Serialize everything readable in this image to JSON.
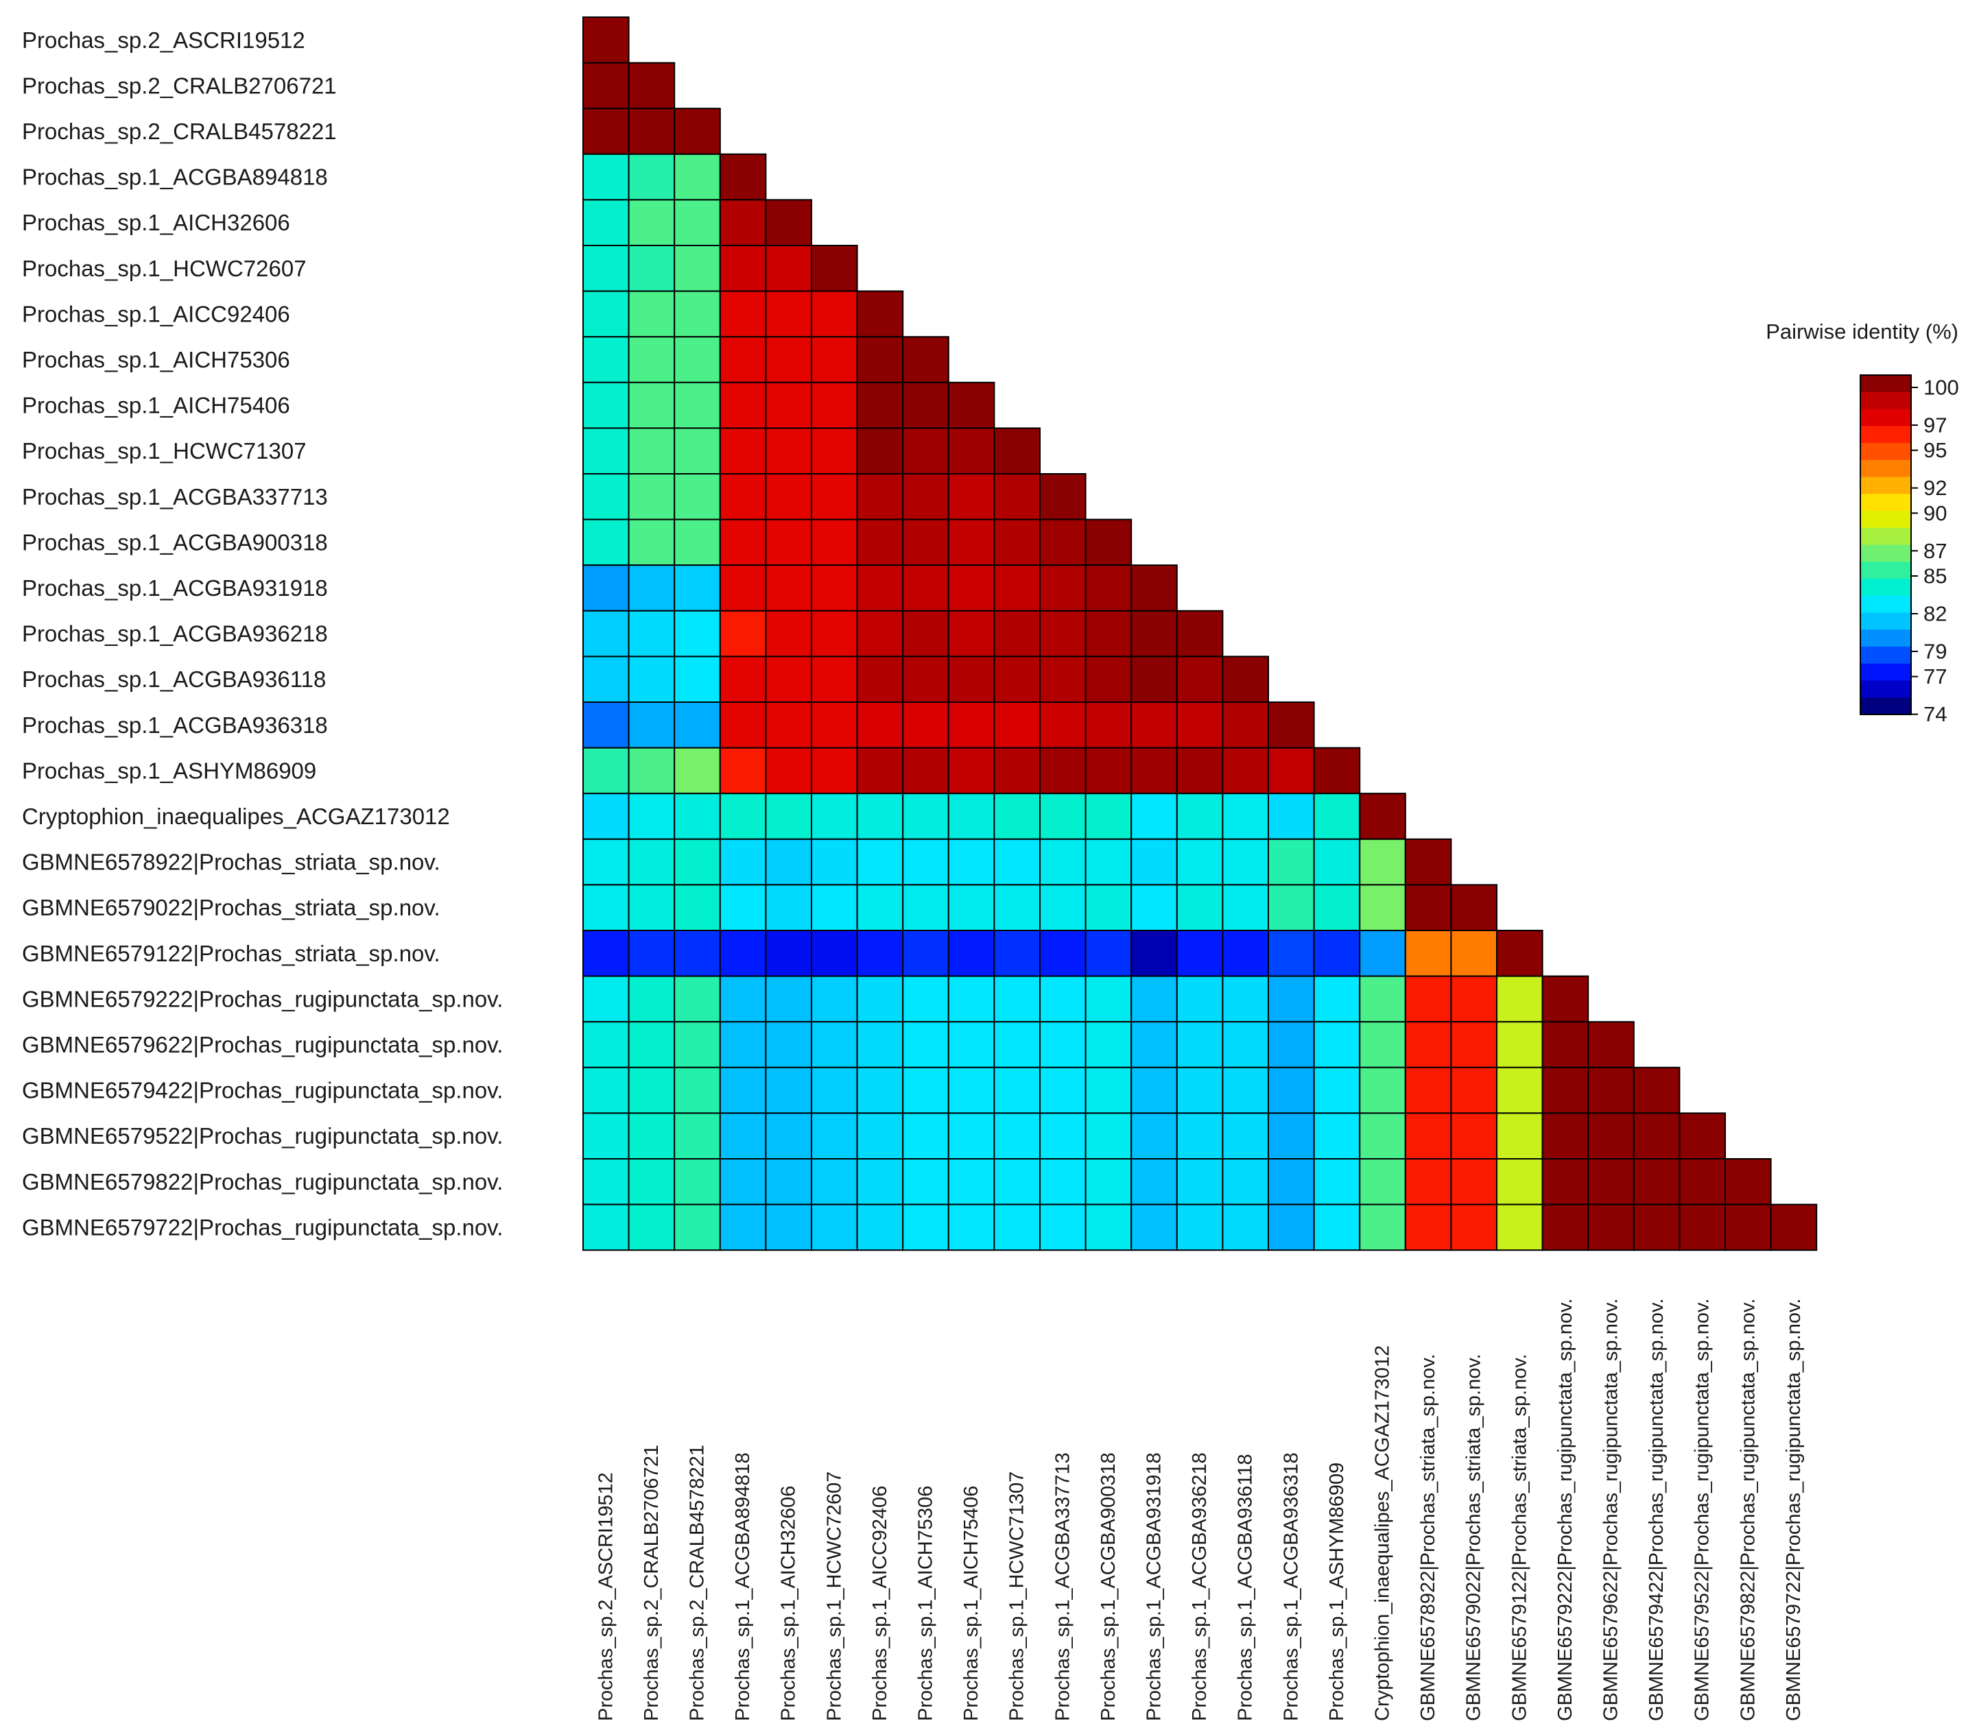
{
  "chart_data": {
    "type": "heatmap",
    "title": "",
    "labels": [
      "Prochas_sp.2_ASCRI19512",
      "Prochas_sp.2_CRALB2706721",
      "Prochas_sp.2_CRALB4578221",
      "Prochas_sp.1_ACGBA894818",
      "Prochas_sp.1_AICH32606",
      "Prochas_sp.1_HCWC72607",
      "Prochas_sp.1_AICC92406",
      "Prochas_sp.1_AICH75306",
      "Prochas_sp.1_AICH75406",
      "Prochas_sp.1_HCWC71307",
      "Prochas_sp.1_ACGBA337713",
      "Prochas_sp.1_ACGBA900318",
      "Prochas_sp.1_ACGBA931918",
      "Prochas_sp.1_ACGBA936218",
      "Prochas_sp.1_ACGBA936118",
      "Prochas_sp.1_ACGBA936318",
      "Prochas_sp.1_ASHYM86909",
      "Cryptophion_inaequalipes_ACGAZ173012",
      "GBMNE6578922|Prochas_striata_sp.nov.",
      "GBMNE6579022|Prochas_striata_sp.nov.",
      "GBMNE6579122|Prochas_striata_sp.nov.",
      "GBMNE6579222|Prochas_rugipunctata_sp.nov.",
      "GBMNE6579622|Prochas_rugipunctata_sp.nov.",
      "GBMNE6579422|Prochas_rugipunctata_sp.nov.",
      "GBMNE6579522|Prochas_rugipunctata_sp.nov.",
      "GBMNE6579822|Prochas_rugipunctata_sp.nov.",
      "GBMNE6579722|Prochas_rugipunctata_sp.nov."
    ],
    "matrix_lower": [
      [
        100
      ],
      [
        100,
        100
      ],
      [
        100,
        100,
        100
      ],
      [
        83,
        84,
        85,
        100
      ],
      [
        83,
        85,
        85,
        99,
        100
      ],
      [
        83,
        84,
        85,
        98,
        98,
        100
      ],
      [
        83,
        85,
        85,
        97,
        97,
        97,
        100
      ],
      [
        83,
        85,
        85,
        97,
        97,
        97,
        100,
        100
      ],
      [
        83,
        85,
        85,
        97,
        97,
        97,
        100,
        100,
        100
      ],
      [
        83,
        85,
        85,
        97,
        97,
        97,
        100,
        99.5,
        99.5,
        100
      ],
      [
        83,
        85,
        85,
        97,
        97,
        97,
        99,
        99,
        98.5,
        99,
        100
      ],
      [
        83,
        85,
        85,
        97,
        97,
        97,
        99,
        99,
        98.5,
        99,
        99.5,
        100
      ],
      [
        79,
        80,
        80.5,
        97,
        97,
        97,
        98.5,
        98.5,
        98,
        98.5,
        99,
        99.5,
        100
      ],
      [
        80.5,
        81,
        81.5,
        96,
        97,
        97,
        98.5,
        99,
        98.5,
        99,
        99,
        99.5,
        100,
        100
      ],
      [
        80.5,
        81,
        81.5,
        97,
        97,
        97,
        99,
        99,
        99,
        99,
        99,
        99.5,
        100,
        99.5,
        100
      ],
      [
        78,
        79.5,
        79.5,
        97,
        97,
        97,
        97.5,
        97.5,
        97.5,
        97.5,
        98,
        98.5,
        98.5,
        98.5,
        99,
        100
      ],
      [
        84,
        85,
        86,
        96,
        97,
        97,
        99,
        99,
        98.5,
        99,
        99.5,
        99.5,
        99.5,
        99.5,
        99,
        98.5,
        100
      ],
      [
        81,
        82,
        82.5,
        83,
        83,
        82.5,
        82.5,
        82.5,
        82.5,
        83,
        83,
        83,
        81.5,
        82.5,
        82,
        81,
        83,
        100
      ],
      [
        82,
        82.5,
        83,
        81,
        80.5,
        81,
        81.5,
        81.5,
        81.5,
        81.5,
        82,
        82,
        81,
        82,
        82,
        84,
        82.5,
        86,
        100
      ],
      [
        82,
        82.5,
        83,
        81.5,
        81,
        81.5,
        82,
        82,
        82,
        82,
        82,
        82.5,
        81.5,
        82.5,
        82,
        84,
        83,
        86,
        100,
        100
      ],
      [
        76,
        76.5,
        76.5,
        76,
        75.5,
        75.5,
        76,
        76.5,
        76,
        76.5,
        76,
        76.5,
        74,
        76,
        76,
        77,
        76.5,
        79,
        93,
        93,
        100
      ],
      [
        82,
        83,
        84,
        80,
        80,
        80.5,
        81,
        81.5,
        81.5,
        81.5,
        81.5,
        82,
        80,
        81,
        81,
        79.5,
        81.5,
        85,
        96,
        96,
        88,
        100
      ],
      [
        82.5,
        83,
        84,
        80,
        80,
        80.5,
        81,
        81.5,
        81.5,
        81.5,
        81.5,
        82,
        80,
        81,
        81,
        79.5,
        81.5,
        85,
        96,
        96,
        88,
        100,
        100
      ],
      [
        82.5,
        83,
        84,
        80,
        80,
        80.5,
        81,
        81.5,
        81.5,
        81.5,
        81.5,
        82,
        80,
        81,
        81,
        79.5,
        81.5,
        85,
        96,
        96,
        88,
        100,
        100,
        100
      ],
      [
        82.5,
        83,
        84,
        80,
        80,
        80.5,
        81,
        81.5,
        81.5,
        81.5,
        81.5,
        82,
        80,
        81,
        81,
        79.5,
        81.5,
        85,
        96,
        96,
        88,
        100,
        100,
        100,
        100
      ],
      [
        82.5,
        83,
        84,
        80,
        80,
        80.5,
        81,
        81.5,
        81.5,
        81.5,
        81.5,
        82,
        80,
        81,
        81,
        79.5,
        81.5,
        85,
        96,
        96,
        88,
        100,
        100,
        100,
        100,
        100
      ],
      [
        82.5,
        83,
        84,
        80,
        80,
        80.5,
        81,
        81.5,
        81.5,
        81.5,
        81.5,
        82,
        80,
        81,
        81,
        79.5,
        81.5,
        85,
        96,
        96,
        88,
        100,
        100,
        100,
        100,
        100,
        100
      ]
    ],
    "legend": {
      "title": "Pairwise identity (%)",
      "ticks": [
        "100",
        "97",
        "95",
        "92",
        "90",
        "87",
        "85",
        "82",
        "79",
        "77",
        "74"
      ],
      "range": [
        73,
        100
      ],
      "colors": [
        "#000080",
        "#0000c8",
        "#0014ff",
        "#0050ff",
        "#0090ff",
        "#00c4ff",
        "#00e8ff",
        "#00f0d0",
        "#30f0a0",
        "#70f070",
        "#a8f040",
        "#e0f000",
        "#ffe000",
        "#ffb000",
        "#ff8000",
        "#ff5000",
        "#ff2000",
        "#e00000",
        "#c00000",
        "#8b0000"
      ],
      "placement": "right"
    }
  }
}
